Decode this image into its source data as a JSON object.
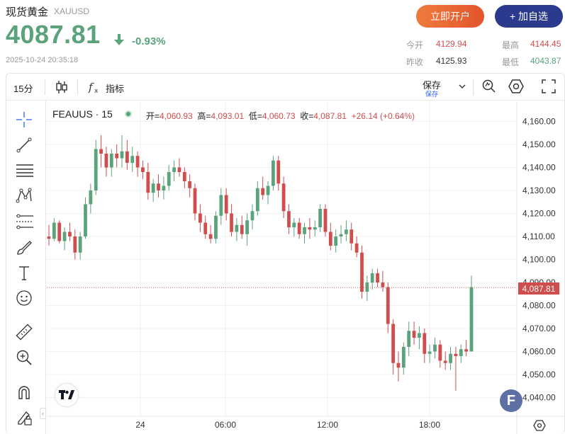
{
  "header": {
    "name": "现货黄金",
    "symbol": "XAUUSD",
    "price": "4087.81",
    "change_pct": "-0.93%",
    "timestamp": "2025-10-24 20:35:18",
    "open_account_label": "立即开户",
    "watch_label": "+ 加自选"
  },
  "stats": {
    "open_label": "今开",
    "open_value": "4129.94",
    "prev_label": "昨收",
    "prev_value": "4125.93",
    "high_label": "最高",
    "high_value": "4144.45",
    "low_label": "最低",
    "low_value": "4043.87"
  },
  "toolbar": {
    "interval": "15分",
    "indicators_label": "指标",
    "save_label": "保存",
    "save_sub": "保存"
  },
  "legend": {
    "symbol_interval": "FEAUUS · 15",
    "open_label": "开=",
    "open": "4,060.93",
    "high_label": "高=",
    "high": "4,093.01",
    "low_label": "低=",
    "low": "4,060.73",
    "close_label": "收=",
    "close": "4,087.81",
    "change": "+26.14 (+0.64%)"
  },
  "last_price_tag": "4,087.81",
  "badge_letter": "F",
  "colors": {
    "up": "#5aa37b",
    "down": "#cf4d4d",
    "brand": "#2b3a8c",
    "cta": "#e4542d"
  },
  "chart_data": {
    "type": "candlestick",
    "ylim": [
      4035,
      4165
    ],
    "y_ticks": [
      "4,040.00",
      "4,050.00",
      "4,060.00",
      "4,070.00",
      "4,080.00",
      "4,090.00",
      "4,100.00",
      "4,110.00",
      "4,120.00",
      "4,130.00",
      "4,140.00",
      "4,150.00",
      "4,160.00"
    ],
    "x_ticks": [
      "24",
      "06:00",
      "12:00",
      "18:00"
    ],
    "candles": [
      [
        4110,
        4115,
        4106,
        4109
      ],
      [
        4109,
        4118,
        4108,
        4116
      ],
      [
        4116,
        4117,
        4107,
        4108
      ],
      [
        4108,
        4114,
        4104,
        4112
      ],
      [
        4112,
        4116,
        4108,
        4110
      ],
      [
        4110,
        4113,
        4100,
        4103
      ],
      [
        4103,
        4112,
        4100,
        4110
      ],
      [
        4110,
        4127,
        4109,
        4124
      ],
      [
        4124,
        4133,
        4120,
        4130
      ],
      [
        4130,
        4152,
        4128,
        4148
      ],
      [
        4148,
        4154,
        4140,
        4146
      ],
      [
        4146,
        4149,
        4136,
        4140
      ],
      [
        4140,
        4148,
        4136,
        4146
      ],
      [
        4146,
        4150,
        4140,
        4144
      ],
      [
        4144,
        4154,
        4140,
        4147
      ],
      [
        4147,
        4152,
        4139,
        4142
      ],
      [
        4142,
        4149,
        4138,
        4145
      ],
      [
        4145,
        4147,
        4136,
        4140
      ],
      [
        4140,
        4143,
        4135,
        4138
      ],
      [
        4138,
        4142,
        4126,
        4129
      ],
      [
        4129,
        4135,
        4125,
        4133
      ],
      [
        4133,
        4137,
        4127,
        4130
      ],
      [
        4130,
        4136,
        4126,
        4132
      ],
      [
        4132,
        4141,
        4130,
        4138
      ],
      [
        4138,
        4143,
        4134,
        4140
      ],
      [
        4140,
        4144,
        4136,
        4138
      ],
      [
        4138,
        4140,
        4131,
        4134
      ],
      [
        4134,
        4137,
        4127,
        4131
      ],
      [
        4131,
        4133,
        4117,
        4120
      ],
      [
        4120,
        4124,
        4112,
        4116
      ],
      [
        4116,
        4119,
        4109,
        4111
      ],
      [
        4111,
        4115,
        4107,
        4109
      ],
      [
        4109,
        4121,
        4107,
        4119
      ],
      [
        4119,
        4131,
        4115,
        4128
      ],
      [
        4128,
        4131,
        4117,
        4120
      ],
      [
        4120,
        4124,
        4110,
        4112
      ],
      [
        4112,
        4118,
        4108,
        4115
      ],
      [
        4115,
        4119,
        4109,
        4111
      ],
      [
        4111,
        4120,
        4106,
        4117
      ],
      [
        4117,
        4124,
        4113,
        4121
      ],
      [
        4121,
        4134,
        4119,
        4131
      ],
      [
        4131,
        4136,
        4126,
        4128
      ],
      [
        4128,
        4134,
        4124,
        4132
      ],
      [
        4132,
        4145,
        4130,
        4143
      ],
      [
        4143,
        4145,
        4130,
        4133
      ],
      [
        4133,
        4136,
        4118,
        4121
      ],
      [
        4121,
        4124,
        4111,
        4114
      ],
      [
        4114,
        4118,
        4110,
        4116
      ],
      [
        4116,
        4118,
        4109,
        4111
      ],
      [
        4111,
        4116,
        4107,
        4114
      ],
      [
        4114,
        4118,
        4109,
        4113
      ],
      [
        4113,
        4117,
        4110,
        4114
      ],
      [
        4114,
        4124,
        4112,
        4122
      ],
      [
        4122,
        4124,
        4110,
        4112
      ],
      [
        4112,
        4116,
        4104,
        4106
      ],
      [
        4106,
        4113,
        4103,
        4110
      ],
      [
        4110,
        4115,
        4107,
        4111
      ],
      [
        4111,
        4117,
        4108,
        4113
      ],
      [
        4113,
        4116,
        4104,
        4107
      ],
      [
        4107,
        4110,
        4101,
        4103
      ],
      [
        4103,
        4106,
        4083,
        4086
      ],
      [
        4086,
        4093,
        4082,
        4090
      ],
      [
        4090,
        4096,
        4087,
        4094
      ],
      [
        4094,
        4096,
        4088,
        4090
      ],
      [
        4090,
        4095,
        4086,
        4088
      ],
      [
        4088,
        4090,
        4068,
        4072
      ],
      [
        4072,
        4074,
        4050,
        4055
      ],
      [
        4055,
        4060,
        4047,
        4053
      ],
      [
        4053,
        4064,
        4050,
        4062
      ],
      [
        4062,
        4073,
        4058,
        4069
      ],
      [
        4069,
        4073,
        4063,
        4066
      ],
      [
        4066,
        4071,
        4061,
        4068
      ],
      [
        4068,
        4070,
        4055,
        4059
      ],
      [
        4059,
        4063,
        4055,
        4060
      ],
      [
        4060,
        4066,
        4057,
        4063
      ],
      [
        4063,
        4065,
        4053,
        4056
      ],
      [
        4056,
        4060,
        4052,
        4055
      ],
      [
        4055,
        4062,
        4052,
        4059
      ],
      [
        4059,
        4062,
        4043,
        4058
      ],
      [
        4058,
        4063,
        4055,
        4061
      ],
      [
        4061,
        4065,
        4058,
        4060
      ],
      [
        4060,
        4093,
        4060,
        4088
      ]
    ]
  }
}
